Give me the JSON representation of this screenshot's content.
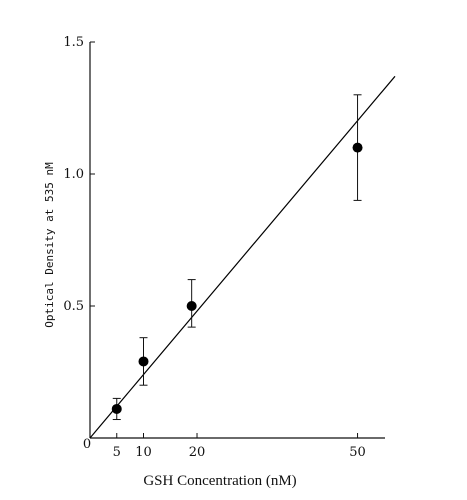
{
  "chart_data": {
    "type": "scatter",
    "title": "",
    "xlabel": "GSH Concentration (nM)",
    "ylabel": "Optical Density at 535 nM",
    "xlim": [
      0,
      57
    ],
    "ylim": [
      0,
      1.5
    ],
    "x_ticks": [
      {
        "value": 5,
        "label": "5"
      },
      {
        "value": 10,
        "label": "10"
      },
      {
        "value": 20,
        "label": "20"
      },
      {
        "value": 50,
        "label": "50"
      }
    ],
    "y_ticks": [
      {
        "value": 0.5,
        "label": "0.5"
      },
      {
        "value": 1.0,
        "label": "1.0"
      },
      {
        "value": 1.5,
        "label": "1.5"
      }
    ],
    "origin_label": "0",
    "grid": false,
    "legend": "none",
    "series": [
      {
        "marker": "filled-circle",
        "color": "#000000",
        "points": [
          {
            "x": 5,
            "y": 0.11,
            "err_low": 0.07,
            "err_high": 0.15
          },
          {
            "x": 10,
            "y": 0.29,
            "err_low": 0.2,
            "err_high": 0.38
          },
          {
            "x": 19,
            "y": 0.5,
            "err_low": 0.42,
            "err_high": 0.6
          },
          {
            "x": 50,
            "y": 1.1,
            "err_low": 0.9,
            "err_high": 1.3
          }
        ]
      }
    ],
    "fit_line": {
      "color": "#000000",
      "from": {
        "x": 0,
        "y": 0
      },
      "to": {
        "x": 57,
        "y": 1.37
      }
    }
  }
}
